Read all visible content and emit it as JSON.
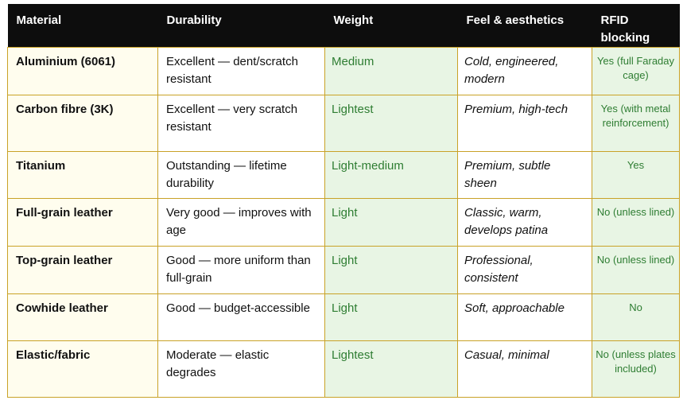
{
  "table": {
    "headers": [
      "Material",
      "Durability",
      "Weight",
      "Feel & aesthetics",
      "RFID blocking"
    ],
    "rows": [
      {
        "material": "Aluminium (6061)",
        "durability": "Excellent — dent/scratch resistant",
        "weight": "Medium",
        "feel": "Cold, engineered, modern",
        "rfid": "Yes (full Faraday cage)"
      },
      {
        "material": "Carbon fibre (3K)",
        "durability": "Excellent — very scratch resistant",
        "weight": "Lightest",
        "feel": "Premium, high-tech",
        "rfid": "Yes (with metal reinforcement)"
      },
      {
        "material": "Titanium",
        "durability": "Outstanding — lifetime durability",
        "weight": "Light-medium",
        "feel": "Premium, subtle sheen",
        "rfid": "Yes"
      },
      {
        "material": "Full-grain leather",
        "durability": "Very good — improves with age",
        "weight": "Light",
        "feel": "Classic, warm, develops patina",
        "rfid": "No (unless lined)"
      },
      {
        "material": "Top-grain leather",
        "durability": "Good — more uniform than full-grain",
        "weight": "Light",
        "feel": "Professional, consistent",
        "rfid": "No (unless lined)"
      },
      {
        "material": "Cowhide leather",
        "durability": "Good — budget-accessible",
        "weight": "Light",
        "feel": "Soft, approachable",
        "rfid": "No"
      },
      {
        "material": "Elastic/fabric",
        "durability": "Moderate — elastic degrades",
        "weight": "Lightest",
        "feel": "Casual, minimal",
        "rfid": "No (unless plates included)"
      }
    ]
  },
  "colors": {
    "header_bg": "#0d0d0d",
    "header_text": "#ffffff",
    "border": "#c9a227",
    "material_bg": "#fffdee",
    "green_bg": "#e8f5e4",
    "green_text": "#2e7d32"
  }
}
